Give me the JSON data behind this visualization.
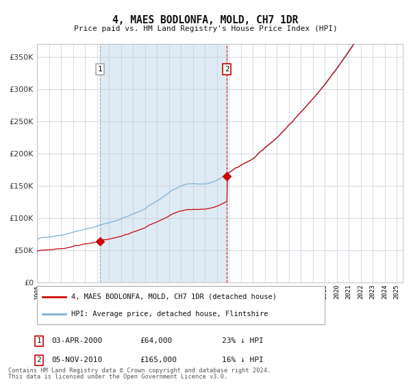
{
  "title": "4, MAES BODLONFA, MOLD, CH7 1DR",
  "subtitle": "Price paid vs. HM Land Registry's House Price Index (HPI)",
  "ylim": [
    0,
    370000
  ],
  "xlim_start": 1995.0,
  "xlim_end": 2025.5,
  "yticks": [
    0,
    50000,
    100000,
    150000,
    200000,
    250000,
    300000,
    350000
  ],
  "ytick_labels": [
    "£0",
    "£50K",
    "£100K",
    "£150K",
    "£200K",
    "£250K",
    "£300K",
    "£350K"
  ],
  "sale1_date": 2000.25,
  "sale1_price": 64000,
  "sale1_label": "1",
  "sale2_date": 2010.84,
  "sale2_price": 165000,
  "sale2_label": "2",
  "hpi_color": "#7ab0d4",
  "price_color": "#cc0000",
  "shade_color": "#deeaf4",
  "grid_color": "#c8c8d8",
  "background_color": "#ffffff",
  "legend_line1": "4, MAES BODLONFA, MOLD, CH7 1DR (detached house)",
  "legend_line2": "HPI: Average price, detached house, Flintshire",
  "table_row1_num": "1",
  "table_row1_date": "03-APR-2000",
  "table_row1_price": "£64,000",
  "table_row1_hpi": "23% ↓ HPI",
  "table_row2_num": "2",
  "table_row2_date": "05-NOV-2010",
  "table_row2_price": "£165,000",
  "table_row2_hpi": "16% ↓ HPI",
  "footnote1": "Contains HM Land Registry data © Crown copyright and database right 2024.",
  "footnote2": "This data is licensed under the Open Government Licence v3.0."
}
